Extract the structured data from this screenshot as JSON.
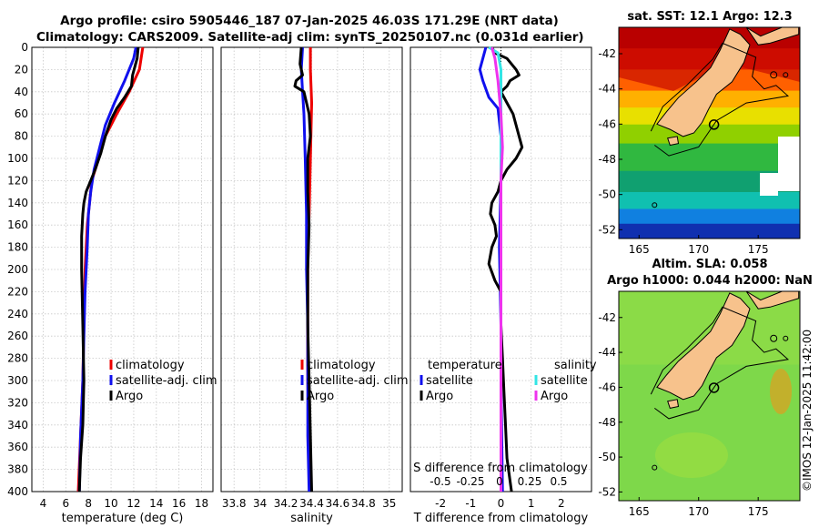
{
  "header": {
    "line1": "Argo profile: csiro 5905446_187 07-Jan-2025 46.03S 171.29E (NRT data)",
    "line2": "Climatology: CARS2009. Satellite-adj clim: synTS_20250107.nc (0.031d earlier)"
  },
  "colors": {
    "climatology": "#ee0000",
    "satellite": "#1010ee",
    "argo": "#000000",
    "sat_salinity": "#33e5e5",
    "argo_salinity": "#ee33ee"
  },
  "chart_data": [
    {
      "type": "line",
      "panel": "temperature",
      "xlabel": "temperature (deg C)",
      "ylabel": "",
      "xlim": [
        3,
        19
      ],
      "xticks": [
        4,
        6,
        8,
        10,
        12,
        14,
        16,
        18
      ],
      "ylim": [
        0,
        400
      ],
      "yticks": [
        0,
        20,
        40,
        60,
        80,
        100,
        120,
        140,
        160,
        180,
        200,
        220,
        240,
        260,
        280,
        300,
        320,
        340,
        360,
        380,
        400
      ],
      "grid": true,
      "legend": [
        "climatology",
        "satellite-adj. clim",
        "Argo"
      ],
      "series": [
        {
          "name": "climatology",
          "color_key": "climatology",
          "points": [
            [
              12.8,
              0
            ],
            [
              12.5,
              20
            ],
            [
              11.6,
              40
            ],
            [
              10.5,
              60
            ],
            [
              9.5,
              80
            ],
            [
              8.9,
              100
            ],
            [
              8.3,
              120
            ],
            [
              8.1,
              140
            ],
            [
              7.9,
              160
            ],
            [
              7.8,
              180
            ],
            [
              7.7,
              200
            ],
            [
              7.6,
              250
            ],
            [
              7.5,
              300
            ],
            [
              7.3,
              350
            ],
            [
              7.1,
              400
            ]
          ]
        },
        {
          "name": "satellite-adj. clim",
          "color_key": "satellite",
          "points": [
            [
              12.2,
              0
            ],
            [
              12.0,
              10
            ],
            [
              11.2,
              30
            ],
            [
              10.3,
              50
            ],
            [
              9.5,
              70
            ],
            [
              9.0,
              90
            ],
            [
              8.5,
              110
            ],
            [
              8.2,
              130
            ],
            [
              8.0,
              150
            ],
            [
              7.9,
              180
            ],
            [
              7.7,
              220
            ],
            [
              7.6,
              260
            ],
            [
              7.5,
              300
            ],
            [
              7.3,
              350
            ],
            [
              7.2,
              400
            ]
          ]
        },
        {
          "name": "Argo",
          "color_key": "argo",
          "points": [
            [
              12.4,
              0
            ],
            [
              12.3,
              10
            ],
            [
              11.9,
              25
            ],
            [
              11.8,
              35
            ],
            [
              11.2,
              45
            ],
            [
              10.5,
              55
            ],
            [
              10.0,
              65
            ],
            [
              9.5,
              80
            ],
            [
              9.1,
              95
            ],
            [
              8.6,
              110
            ],
            [
              8.2,
              120
            ],
            [
              7.8,
              130
            ],
            [
              7.6,
              140
            ],
            [
              7.5,
              150
            ],
            [
              7.4,
              170
            ],
            [
              7.4,
              200
            ],
            [
              7.5,
              250
            ],
            [
              7.6,
              300
            ],
            [
              7.5,
              340
            ],
            [
              7.3,
              370
            ],
            [
              7.2,
              400
            ]
          ]
        }
      ]
    },
    {
      "type": "line",
      "panel": "salinity",
      "xlabel": "salinity",
      "ylabel": "",
      "xlim": [
        33.7,
        35.1
      ],
      "xticks": [
        33.8,
        34,
        34.2,
        34.4,
        34.6,
        34.8,
        35
      ],
      "ylim": [
        0,
        400
      ],
      "grid": true,
      "legend": [
        "climatology",
        "satellite-adj. clim",
        "Argo"
      ],
      "series": [
        {
          "name": "climatology",
          "color_key": "climatology",
          "points": [
            [
              34.39,
              0
            ],
            [
              34.39,
              20
            ],
            [
              34.4,
              50
            ],
            [
              34.39,
              100
            ],
            [
              34.38,
              150
            ],
            [
              34.37,
              200
            ],
            [
              34.37,
              250
            ],
            [
              34.37,
              300
            ],
            [
              34.38,
              350
            ],
            [
              34.39,
              400
            ]
          ]
        },
        {
          "name": "satellite-adj. clim",
          "color_key": "satellite",
          "points": [
            [
              34.33,
              0
            ],
            [
              34.32,
              20
            ],
            [
              34.33,
              40
            ],
            [
              34.34,
              60
            ],
            [
              34.35,
              100
            ],
            [
              34.36,
              150
            ],
            [
              34.36,
              200
            ],
            [
              34.37,
              250
            ],
            [
              34.37,
              300
            ],
            [
              34.37,
              350
            ],
            [
              34.38,
              400
            ]
          ]
        },
        {
          "name": "Argo",
          "color_key": "argo",
          "points": [
            [
              34.32,
              0
            ],
            [
              34.31,
              15
            ],
            [
              34.33,
              25
            ],
            [
              34.28,
              30
            ],
            [
              34.27,
              35
            ],
            [
              34.34,
              40
            ],
            [
              34.38,
              60
            ],
            [
              34.39,
              80
            ],
            [
              34.37,
              100
            ],
            [
              34.37,
              130
            ],
            [
              34.38,
              160
            ],
            [
              34.37,
              200
            ],
            [
              34.37,
              250
            ],
            [
              34.38,
              300
            ],
            [
              34.39,
              350
            ],
            [
              34.4,
              400
            ]
          ]
        }
      ]
    },
    {
      "type": "line",
      "panel": "difference",
      "xlabel": "T difference from climatology",
      "ylabel": "",
      "xlim": [
        -3,
        3
      ],
      "xticks": [
        -2,
        -1,
        0,
        1,
        2
      ],
      "top_xlabel": "S difference from climatology",
      "top_xticks": [
        "-0.5",
        "-0.25",
        "0",
        "0.25",
        "0.5"
      ],
      "ylim": [
        0,
        400
      ],
      "grid": true,
      "legend_temperature": {
        "title": "temperature",
        "items": [
          "satellite",
          "Argo"
        ]
      },
      "legend_salinity": {
        "title": "salinity",
        "items": [
          "satellite",
          "Argo"
        ]
      },
      "series": [
        {
          "name": "temperature satellite",
          "color_key": "satellite",
          "points": [
            [
              -0.5,
              0
            ],
            [
              -0.6,
              10
            ],
            [
              -0.7,
              20
            ],
            [
              -0.6,
              30
            ],
            [
              -0.4,
              45
            ],
            [
              -0.1,
              55
            ],
            [
              0,
              80
            ],
            [
              0,
              120
            ],
            [
              -0.05,
              180
            ],
            [
              0,
              250
            ],
            [
              0,
              300
            ],
            [
              0.05,
              400
            ]
          ]
        },
        {
          "name": "temperature Argo",
          "color_key": "argo",
          "points": [
            [
              -0.3,
              0
            ],
            [
              -0.2,
              5
            ],
            [
              0.2,
              10
            ],
            [
              0.5,
              20
            ],
            [
              0.6,
              25
            ],
            [
              0.3,
              30
            ],
            [
              0.2,
              35
            ],
            [
              0,
              40
            ],
            [
              0.2,
              50
            ],
            [
              0.4,
              60
            ],
            [
              0.5,
              70
            ],
            [
              0.6,
              80
            ],
            [
              0.7,
              90
            ],
            [
              0.5,
              100
            ],
            [
              0.2,
              110
            ],
            [
              0,
              120
            ],
            [
              -0.1,
              130
            ],
            [
              -0.3,
              140
            ],
            [
              -0.35,
              150
            ],
            [
              -0.2,
              160
            ],
            [
              -0.15,
              170
            ],
            [
              -0.3,
              180
            ],
            [
              -0.4,
              195
            ],
            [
              -0.2,
              210
            ],
            [
              0,
              220
            ],
            [
              0,
              250
            ],
            [
              0.05,
              280
            ],
            [
              0.1,
              310
            ],
            [
              0.15,
              340
            ],
            [
              0.2,
              370
            ],
            [
              0.35,
              400
            ]
          ]
        },
        {
          "name": "salinity satellite",
          "color_key": "sat_salinity",
          "points": [
            [
              -0.4,
              0
            ],
            [
              -0.1,
              5
            ],
            [
              0,
              20
            ],
            [
              0,
              50
            ],
            [
              0,
              100
            ],
            [
              0,
              150
            ],
            [
              0,
              200
            ],
            [
              0,
              250
            ],
            [
              0,
              300
            ],
            [
              0,
              350
            ],
            [
              0,
              400
            ]
          ]
        },
        {
          "name": "salinity Argo",
          "color_key": "argo_salinity",
          "points": [
            [
              -0.3,
              0
            ],
            [
              -0.2,
              10
            ],
            [
              -0.1,
              30
            ],
            [
              0,
              60
            ],
            [
              0.05,
              90
            ],
            [
              0,
              120
            ],
            [
              0,
              180
            ],
            [
              0,
              250
            ],
            [
              0,
              300
            ],
            [
              0,
              350
            ],
            [
              0,
              400
            ]
          ]
        }
      ]
    },
    {
      "type": "heatmap",
      "panel": "sst_map",
      "title": "sat. SST: 12.1 Argo: 12.3",
      "xticks": [
        165,
        170,
        175
      ],
      "yticks": [
        -42,
        -44,
        -46,
        -48,
        -50,
        -52
      ],
      "xlim": [
        163.3,
        178.5
      ],
      "ylim": [
        -52.5,
        -40.5
      ]
    },
    {
      "type": "heatmap",
      "panel": "sla_map",
      "title_line1": "Altim. SLA: 0.058",
      "title_line2": "Argo h1000: 0.044 h2000: NaN",
      "xticks": [
        165,
        170,
        175
      ],
      "yticks": [
        -42,
        -44,
        -46,
        -48,
        -50,
        -52
      ],
      "xlim": [
        163.3,
        178.5
      ],
      "ylim": [
        -52.5,
        -40.5
      ]
    }
  ],
  "stamp": "©IMOS 12-Jan-2025 11:42:00"
}
